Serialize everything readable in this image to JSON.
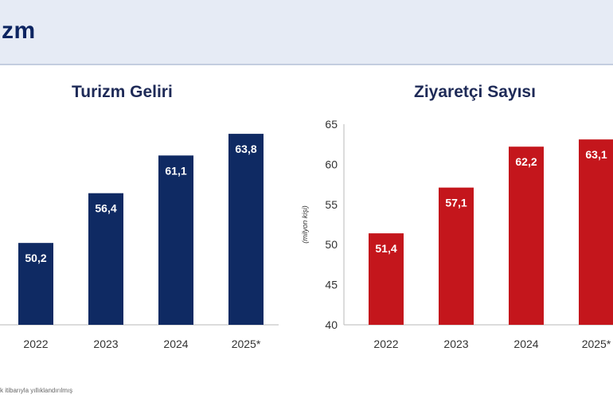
{
  "header": {
    "title": "zm"
  },
  "footnote": "k itibarıyla yıllıklandırılmış",
  "chart_data": [
    {
      "type": "bar",
      "title": "Turizm Geliri",
      "categories": [
        "2022",
        "2023",
        "2024",
        "2025*"
      ],
      "values": [
        50.2,
        56.4,
        61.1,
        63.8
      ],
      "value_labels": [
        "50,2",
        "56,4",
        "61,1",
        "63,8"
      ],
      "ylim": [
        40,
        65
      ],
      "bar_color": "#0f2a63",
      "grid": false
    },
    {
      "type": "bar",
      "title": "Ziyaretçi Sayısı",
      "ylabel": "(milyon kişi)",
      "categories": [
        "2022",
        "2023",
        "2024",
        "2025*"
      ],
      "values": [
        51.4,
        57.1,
        62.2,
        63.1
      ],
      "value_labels": [
        "51,4",
        "57,1",
        "62,2",
        "63,1"
      ],
      "yticks": [
        "40",
        "45",
        "50",
        "55",
        "60",
        "65"
      ],
      "ylim": [
        40,
        65
      ],
      "bar_color": "#c4161c",
      "grid": false
    }
  ]
}
